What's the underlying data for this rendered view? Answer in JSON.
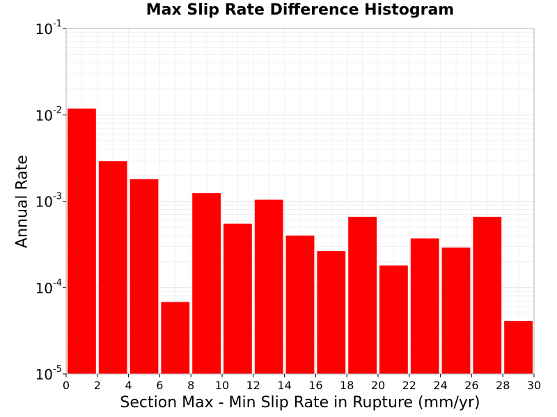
{
  "chart_data": {
    "type": "bar",
    "title": "Max Slip Rate Difference Histogram",
    "xlabel": "Section Max - Min Slip Rate in Rupture (mm/yr)",
    "ylabel": "Annual Rate",
    "x_bin_width": 2,
    "x_bin_starts": [
      0,
      2,
      4,
      6,
      8,
      10,
      12,
      14,
      16,
      18,
      20,
      22,
      24,
      26,
      28
    ],
    "values": [
      0.0118,
      0.0029,
      0.0018,
      6.8e-05,
      0.00124,
      0.00055,
      0.00104,
      0.0004,
      0.000265,
      0.00066,
      0.00018,
      0.00037,
      0.00029,
      0.00066,
      4.1e-05
    ],
    "xlim": [
      0,
      30
    ],
    "ylim": [
      1e-05,
      0.1
    ],
    "yscale": "log",
    "x_ticks": [
      "0",
      "2",
      "4",
      "6",
      "8",
      "10",
      "12",
      "14",
      "16",
      "18",
      "20",
      "22",
      "24",
      "26",
      "28",
      "30"
    ],
    "y_ticks": [
      {
        "base": "10",
        "exp": "-5"
      },
      {
        "base": "10",
        "exp": "-4"
      },
      {
        "base": "10",
        "exp": "-3"
      },
      {
        "base": "10",
        "exp": "-2"
      },
      {
        "base": "10",
        "exp": "-1"
      }
    ],
    "bar_color": "#ff0000",
    "grid": true
  }
}
